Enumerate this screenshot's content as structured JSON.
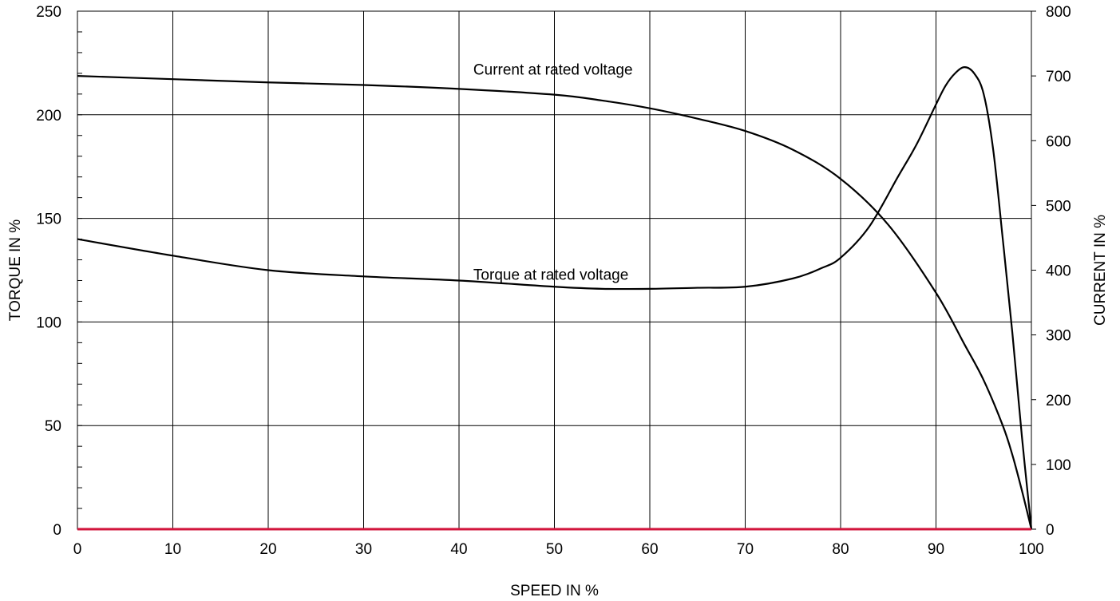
{
  "chart_data": {
    "type": "line",
    "title": "",
    "xlabel": "SPEED IN %",
    "ylabel": "TORQUE IN %",
    "y2label": "CURRENT IN %",
    "xlim": [
      0,
      100
    ],
    "ylim": [
      0,
      250
    ],
    "y2lim": [
      0,
      800
    ],
    "xticks": [
      0,
      10,
      20,
      30,
      40,
      50,
      60,
      70,
      80,
      90,
      100
    ],
    "yticks": [
      0,
      50,
      100,
      150,
      200,
      250
    ],
    "y2ticks": [
      0,
      100,
      200,
      300,
      400,
      500,
      600,
      700,
      800
    ],
    "grid": true,
    "baseline_color": "#d2143c",
    "curve_color": "#000000",
    "series": [
      {
        "label": "Current at rated voltage",
        "axis": "right",
        "x": [
          0,
          10,
          20,
          30,
          40,
          50,
          55,
          60,
          65,
          70,
          75,
          80,
          85,
          90,
          93,
          95,
          97,
          98,
          99,
          100
        ],
        "y": [
          700,
          695,
          690,
          686,
          680,
          671,
          662,
          650,
          634,
          615,
          586,
          541,
          470,
          365,
          285,
          230,
          160,
          115,
          60,
          0
        ]
      },
      {
        "label": "Torque at rated voltage",
        "axis": "left",
        "x": [
          0,
          10,
          20,
          30,
          40,
          50,
          55,
          60,
          65,
          70,
          75,
          78,
          80,
          83,
          86,
          88,
          90,
          91,
          92,
          93,
          94,
          95,
          96,
          97,
          98,
          99,
          100
        ],
        "y": [
          140,
          132,
          125,
          122,
          120,
          117,
          116,
          116,
          116.5,
          117,
          121,
          126,
          131,
          146,
          170,
          186,
          205,
          214,
          220,
          223,
          220,
          210,
          183,
          140,
          95,
          45,
          0
        ]
      }
    ],
    "annotations": [
      {
        "text": "Current at rated voltage",
        "x": 41.5,
        "y": 222
      },
      {
        "text": "Torque at rated voltage",
        "x": 41.5,
        "y": 123
      }
    ]
  }
}
